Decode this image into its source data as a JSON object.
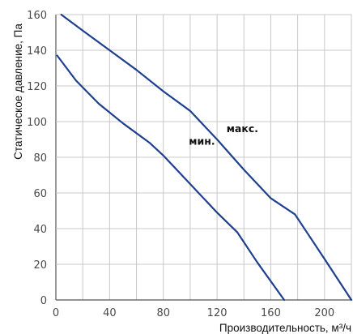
{
  "chart_data": {
    "type": "line",
    "title": "",
    "xlabel": "Производительность, м³/ч",
    "ylabel": "Статическое давление, Па",
    "xlim": [
      0,
      220
    ],
    "ylim": [
      0,
      160
    ],
    "x_ticks": [
      0,
      40,
      80,
      120,
      160,
      200
    ],
    "y_ticks": [
      0,
      20,
      40,
      60,
      80,
      100,
      120,
      140,
      160
    ],
    "grid": true,
    "line_color": "#1f3f8f",
    "series": [
      {
        "name": "макс.",
        "points": [
          [
            4,
            160
          ],
          [
            20,
            151
          ],
          [
            40,
            140
          ],
          [
            60,
            129
          ],
          [
            80,
            117
          ],
          [
            100,
            106
          ],
          [
            120,
            90
          ],
          [
            140,
            73
          ],
          [
            160,
            57
          ],
          [
            178,
            48
          ],
          [
            200,
            23
          ],
          [
            220,
            0
          ]
        ]
      },
      {
        "name": "мин.",
        "points": [
          [
            1,
            137
          ],
          [
            15,
            123
          ],
          [
            32,
            110
          ],
          [
            50,
            99
          ],
          [
            70,
            88
          ],
          [
            80,
            81
          ],
          [
            100,
            65
          ],
          [
            120,
            49
          ],
          [
            135,
            38
          ],
          [
            150,
            21
          ],
          [
            170,
            0
          ]
        ]
      }
    ]
  }
}
